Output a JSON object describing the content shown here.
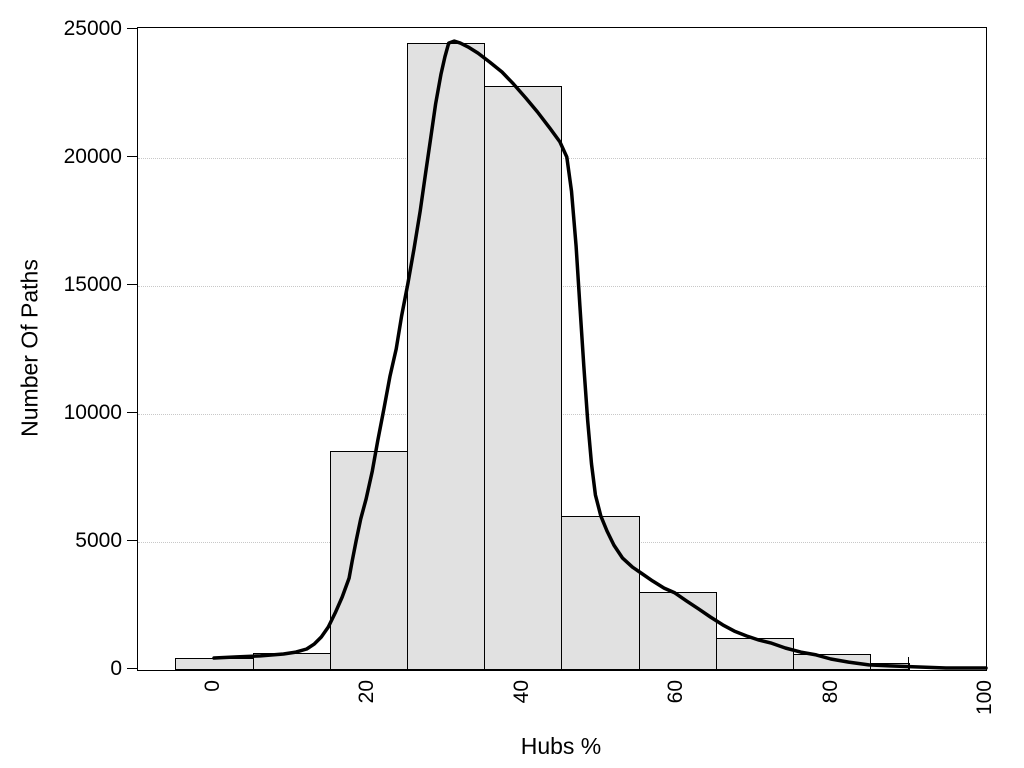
{
  "figure": {
    "background": "#ffffff"
  },
  "chart_data": {
    "type": "bar",
    "subtype": "histogram_with_density_curve",
    "title": "",
    "xlabel": "Hubs %",
    "ylabel": "Number Of Paths",
    "legend": "none",
    "grid": "horizontal-dotted",
    "bar_fill": "#e1e1e1",
    "bar_border": "#000000",
    "curve_color": "#000000",
    "gridline_color": "#c8c8c8",
    "axis_color": "#000000",
    "xlim": [
      -9.85,
      100
    ],
    "ylim": [
      0,
      25080
    ],
    "x_ticks": [
      {
        "value": 0,
        "label": "0"
      },
      {
        "value": 20,
        "label": "20"
      },
      {
        "value": 40,
        "label": "40"
      },
      {
        "value": 60,
        "label": "60"
      },
      {
        "value": 80,
        "label": "80"
      },
      {
        "value": 100,
        "label": "100"
      }
    ],
    "y_ticks": [
      {
        "value": 0,
        "label": "0"
      },
      {
        "value": 5000,
        "label": "5000"
      },
      {
        "value": 10000,
        "label": "10000"
      },
      {
        "value": 15000,
        "label": "15000"
      },
      {
        "value": 20000,
        "label": "20000"
      },
      {
        "value": 25000,
        "label": "25000"
      }
    ],
    "gridlines_at": [
      5000,
      10000,
      15000,
      20000
    ],
    "bins": [
      {
        "from": -5,
        "to": 5,
        "count": 460
      },
      {
        "from": 5,
        "to": 15,
        "count": 650
      },
      {
        "from": 15,
        "to": 25,
        "count": 8550
      },
      {
        "from": 25,
        "to": 35,
        "count": 24500
      },
      {
        "from": 35,
        "to": 45,
        "count": 22800
      },
      {
        "from": 45,
        "to": 55,
        "count": 6000
      },
      {
        "from": 55,
        "to": 65,
        "count": 3050
      },
      {
        "from": 65,
        "to": 75,
        "count": 1250
      },
      {
        "from": 75,
        "to": 85,
        "count": 620
      },
      {
        "from": 85,
        "to": 90,
        "count": 280
      }
    ],
    "last_bin_edge_tick": {
      "x": 90,
      "count": 500
    },
    "density_curve": [
      [
        0,
        470
      ],
      [
        3,
        510
      ],
      [
        6,
        550
      ],
      [
        9,
        625
      ],
      [
        10.6,
        700
      ],
      [
        12,
        820
      ],
      [
        13,
        1020
      ],
      [
        13.9,
        1290
      ],
      [
        14.8,
        1680
      ],
      [
        15.7,
        2230
      ],
      [
        16.6,
        2850
      ],
      [
        17.5,
        3590
      ],
      [
        17.9,
        4260
      ],
      [
        18.4,
        5040
      ],
      [
        19,
        5900
      ],
      [
        19.7,
        6680
      ],
      [
        20.5,
        7770
      ],
      [
        21.2,
        8950
      ],
      [
        22,
        10200
      ],
      [
        22.8,
        11480
      ],
      [
        23.6,
        12540
      ],
      [
        24.3,
        13830
      ],
      [
        25.1,
        15080
      ],
      [
        25.9,
        16450
      ],
      [
        26.7,
        17930
      ],
      [
        27.4,
        19410
      ],
      [
        28.1,
        20860
      ],
      [
        28.7,
        22110
      ],
      [
        29.4,
        23280
      ],
      [
        29.9,
        23950
      ],
      [
        30.4,
        24490
      ],
      [
        31.1,
        24570
      ],
      [
        31.9,
        24490
      ],
      [
        32.9,
        24340
      ],
      [
        34.2,
        24100
      ],
      [
        35.7,
        23750
      ],
      [
        37.3,
        23360
      ],
      [
        38.8,
        22890
      ],
      [
        40.4,
        22340
      ],
      [
        41.9,
        21800
      ],
      [
        43.5,
        21170
      ],
      [
        44.8,
        20630
      ],
      [
        45.7,
        20040
      ],
      [
        46.3,
        18710
      ],
      [
        46.9,
        16560
      ],
      [
        47.4,
        14220
      ],
      [
        47.9,
        11880
      ],
      [
        48.4,
        9730
      ],
      [
        48.9,
        8050
      ],
      [
        49.4,
        6840
      ],
      [
        50.1,
        6020
      ],
      [
        50.9,
        5430
      ],
      [
        51.8,
        4880
      ],
      [
        52.9,
        4380
      ],
      [
        54.2,
        4020
      ],
      [
        55.5,
        3750
      ],
      [
        56.8,
        3480
      ],
      [
        58.3,
        3200
      ],
      [
        59.7,
        3010
      ],
      [
        61.2,
        2700
      ],
      [
        62.8,
        2380
      ],
      [
        64.3,
        2070
      ],
      [
        65.9,
        1760
      ],
      [
        67.4,
        1520
      ],
      [
        69,
        1330
      ],
      [
        70.6,
        1170
      ],
      [
        72.1,
        1060
      ],
      [
        74,
        860
      ],
      [
        76,
        700
      ],
      [
        78,
        590
      ],
      [
        79.9,
        430
      ],
      [
        82.2,
        310
      ],
      [
        84.8,
        200
      ],
      [
        87.6,
        160
      ],
      [
        90.9,
        120
      ],
      [
        94.8,
        80
      ],
      [
        100,
        80
      ]
    ]
  }
}
